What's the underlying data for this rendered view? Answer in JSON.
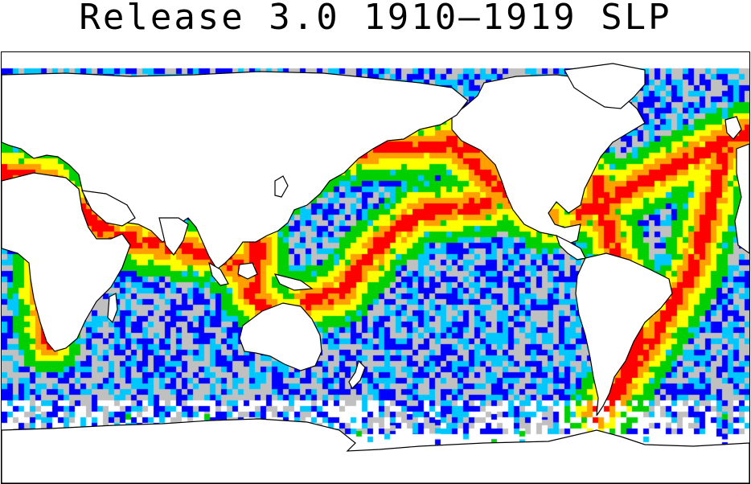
{
  "title": "Release 3.0 1910–1919 SLP",
  "map": {
    "projection": "equirectangular",
    "extent_lon": [
      20,
      380
    ],
    "extent_lat": [
      -90,
      90
    ],
    "palette": {
      "none": "#ffffff",
      "very_low": "#c0c0c0",
      "low": "#0000ff",
      "medium_low": "#00c8ff",
      "medium": "#00d000",
      "medium_high": "#ffff00",
      "high": "#ffa000",
      "very_high": "#ff0000"
    },
    "coastline_color": "#000000",
    "land_fill": "#ffffff"
  }
}
